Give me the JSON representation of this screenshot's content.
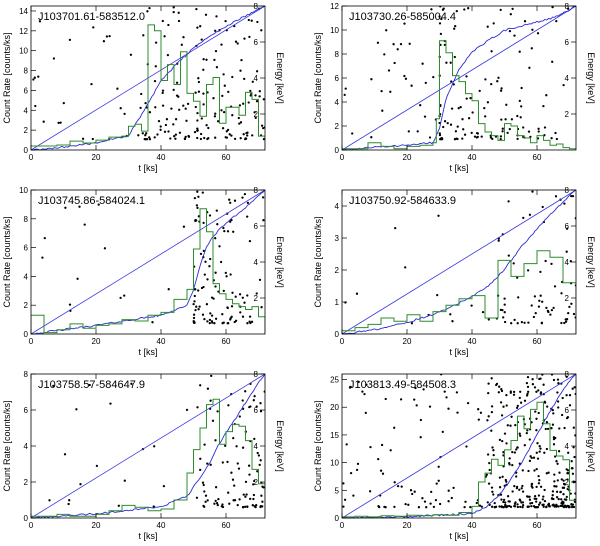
{
  "figure": {
    "x_label": "t [ks]",
    "y_label": "Count Rate [counts/ks]",
    "y2_label": "Energy [keV]",
    "series_colors": {
      "histogram": "#2e8b2e",
      "cumulative": "#2b2bd6",
      "diagonal": "#3a3ae0",
      "photons": "#000000"
    }
  },
  "chart_data": [
    {
      "type": "line",
      "title": "J103701.61-583512.0",
      "xlim": [
        0,
        72
      ],
      "ylim": [
        0,
        14.5
      ],
      "y2lim": [
        0,
        8
      ],
      "xticks": [
        0,
        20,
        40,
        60
      ],
      "yticks": [
        0,
        2,
        4,
        6,
        8,
        10,
        12,
        14
      ],
      "y2ticks": [
        2,
        4,
        6,
        8
      ],
      "histogram": {
        "edges": [
          0,
          4,
          8,
          12,
          16,
          20,
          24,
          28,
          30,
          32,
          34,
          36,
          38,
          40,
          42,
          44,
          46,
          48,
          50,
          52,
          54,
          56,
          58,
          60,
          62,
          64,
          66,
          68,
          70,
          72
        ],
        "rates": [
          0.4,
          0.4,
          0.5,
          0.9,
          0.7,
          1.0,
          1.3,
          1.4,
          2.4,
          2.6,
          1.9,
          12.6,
          12.0,
          7.0,
          8.6,
          6.6,
          9.9,
          5.7,
          4.9,
          3.4,
          6.6,
          7.3,
          2.7,
          4.3,
          4.3,
          3.5,
          5.8,
          5.1,
          1.4
        ]
      },
      "cumulative_fraction": {
        "t": [
          0,
          10,
          20,
          30,
          35,
          40,
          45,
          50,
          55,
          60,
          65,
          70,
          72
        ],
        "f": [
          0.0,
          0.02,
          0.05,
          0.1,
          0.28,
          0.48,
          0.6,
          0.71,
          0.79,
          0.86,
          0.92,
          0.98,
          1.0
        ]
      },
      "photons": {
        "n": 200,
        "seed": 11,
        "model": "flare",
        "onset_ks": 33,
        "emax_keV": 8
      }
    },
    {
      "type": "line",
      "title": "J103730.26-585004.4",
      "xlim": [
        0,
        72
      ],
      "ylim": [
        0,
        12
      ],
      "y2lim": [
        0,
        8
      ],
      "xticks": [
        0,
        20,
        40,
        60
      ],
      "yticks": [
        0,
        2,
        4,
        6,
        8,
        10,
        12
      ],
      "y2ticks": [
        2,
        4,
        6,
        8
      ],
      "histogram": {
        "edges": [
          0,
          4,
          8,
          12,
          16,
          20,
          24,
          28,
          29,
          30,
          32,
          34,
          36,
          38,
          40,
          42,
          44,
          46,
          48,
          50,
          52,
          54,
          56,
          58,
          60,
          62,
          64,
          66,
          68,
          70,
          72
        ],
        "rates": [
          0.1,
          0.1,
          0.6,
          0.3,
          0.1,
          0.3,
          0.4,
          0.6,
          2.6,
          9.1,
          8.1,
          6.2,
          5.7,
          4.7,
          4.1,
          2.2,
          1.5,
          1.2,
          0.8,
          2.2,
          2.0,
          1.2,
          1.0,
          0.6,
          1.2,
          0.8,
          0.4,
          0.5,
          0.2,
          0.1
        ]
      },
      "cumulative_fraction": {
        "t": [
          0,
          28,
          30,
          32,
          34,
          36,
          40,
          45,
          50,
          55,
          60,
          65,
          70,
          72
        ],
        "f": [
          0.0,
          0.05,
          0.15,
          0.36,
          0.46,
          0.56,
          0.68,
          0.76,
          0.83,
          0.86,
          0.89,
          0.92,
          0.97,
          1.0
        ]
      },
      "photons": {
        "n": 160,
        "seed": 23,
        "model": "spike",
        "onset_ks": 30,
        "emax_keV": 8
      }
    },
    {
      "type": "line",
      "title": "J103745.86-584024.1",
      "xlim": [
        0,
        72
      ],
      "ylim": [
        0,
        10
      ],
      "y2lim": [
        0,
        8
      ],
      "xticks": [
        0,
        20,
        40,
        60
      ],
      "yticks": [
        0,
        2,
        4,
        6,
        8,
        10
      ],
      "y2ticks": [
        2,
        4,
        6,
        8
      ],
      "histogram": {
        "edges": [
          0,
          4,
          8,
          12,
          16,
          20,
          24,
          28,
          32,
          36,
          40,
          44,
          48,
          50,
          52,
          54,
          56,
          58,
          60,
          62,
          64,
          66,
          68,
          70,
          72
        ],
        "rates": [
          1.3,
          0.1,
          0.3,
          0.7,
          0.4,
          0.6,
          0.7,
          1.0,
          0.9,
          1.3,
          1.5,
          2.4,
          3.1,
          5.9,
          8.7,
          7.1,
          3.5,
          2.8,
          2.4,
          2.1,
          1.9,
          1.7,
          1.9,
          1.2
        ]
      },
      "cumulative_fraction": {
        "t": [
          0,
          20,
          40,
          48,
          50,
          52,
          54,
          56,
          60,
          65,
          70,
          72
        ],
        "f": [
          0.0,
          0.06,
          0.13,
          0.2,
          0.3,
          0.48,
          0.6,
          0.68,
          0.77,
          0.86,
          0.96,
          1.0
        ]
      },
      "photons": {
        "n": 130,
        "seed": 37,
        "model": "spike",
        "onset_ks": 50,
        "emax_keV": 8
      }
    },
    {
      "type": "line",
      "title": "J103750.92-584633.9",
      "xlim": [
        0,
        72
      ],
      "ylim": [
        0,
        4.5
      ],
      "y2lim": [
        0,
        8
      ],
      "xticks": [
        0,
        20,
        40,
        60
      ],
      "yticks": [
        0,
        1,
        2,
        3,
        4
      ],
      "y2ticks": [
        2,
        4,
        6,
        8
      ],
      "histogram": {
        "edges": [
          0,
          4,
          8,
          12,
          16,
          20,
          24,
          28,
          32,
          36,
          40,
          44,
          48,
          52,
          56,
          60,
          64,
          68,
          72
        ],
        "rates": [
          0.1,
          0.2,
          0.3,
          0.5,
          0.4,
          0.6,
          0.4,
          0.7,
          0.9,
          1.1,
          1.2,
          0.5,
          2.3,
          1.8,
          2.2,
          2.6,
          2.4,
          1.6
        ]
      },
      "cumulative_fraction": {
        "t": [
          0,
          10,
          20,
          30,
          40,
          45,
          50,
          55,
          60,
          65,
          70,
          72
        ],
        "f": [
          0.0,
          0.03,
          0.08,
          0.15,
          0.26,
          0.33,
          0.45,
          0.6,
          0.73,
          0.85,
          0.96,
          1.0
        ]
      },
      "photons": {
        "n": 85,
        "seed": 41,
        "model": "rise",
        "onset_ks": 44,
        "emax_keV": 8
      }
    },
    {
      "type": "line",
      "title": "J103758.57-584647.9",
      "xlim": [
        0,
        72
      ],
      "ylim": [
        0,
        8
      ],
      "y2lim": [
        0,
        8
      ],
      "xticks": [
        0,
        20,
        40,
        60
      ],
      "yticks": [
        0,
        2,
        4,
        6,
        8
      ],
      "y2ticks": [
        2,
        4,
        6,
        8
      ],
      "histogram": {
        "edges": [
          0,
          4,
          8,
          12,
          16,
          20,
          24,
          28,
          32,
          36,
          40,
          44,
          48,
          50,
          52,
          54,
          56,
          58,
          60,
          62,
          64,
          66,
          68,
          70,
          72
        ],
        "rates": [
          0.1,
          0.1,
          0.2,
          0.1,
          0.1,
          0.2,
          0.4,
          0.7,
          0.6,
          0.4,
          0.5,
          1.0,
          2.5,
          3.8,
          5.0,
          6.3,
          6.6,
          4.1,
          4.8,
          5.2,
          5.1,
          4.3,
          2.7,
          1.9
        ]
      },
      "cumulative_fraction": {
        "t": [
          0,
          20,
          40,
          48,
          52,
          55,
          58,
          62,
          66,
          70,
          72
        ],
        "f": [
          0.0,
          0.03,
          0.08,
          0.15,
          0.28,
          0.38,
          0.52,
          0.66,
          0.8,
          0.94,
          1.0
        ]
      },
      "photons": {
        "n": 120,
        "seed": 53,
        "model": "rise",
        "onset_ks": 50,
        "emax_keV": 8
      }
    },
    {
      "type": "line",
      "title": "J103813.49-584508.3",
      "xlim": [
        0,
        72
      ],
      "ylim": [
        0,
        26
      ],
      "y2lim": [
        0,
        8
      ],
      "xticks": [
        0,
        20,
        40,
        60
      ],
      "yticks": [
        0,
        5,
        10,
        15,
        20,
        25
      ],
      "y2ticks": [
        2,
        4,
        6,
        8
      ],
      "histogram": {
        "edges": [
          0,
          4,
          8,
          12,
          16,
          20,
          24,
          28,
          32,
          36,
          40,
          42,
          44,
          46,
          48,
          50,
          52,
          54,
          56,
          58,
          60,
          62,
          64,
          66,
          68,
          70,
          72
        ],
        "rates": [
          0.2,
          0.3,
          0.2,
          0.4,
          0.3,
          0.5,
          0.4,
          0.6,
          0.5,
          1.0,
          2.1,
          6.5,
          8.1,
          10.6,
          9.5,
          12.3,
          14.0,
          18.4,
          16.1,
          19.6,
          20.9,
          17.0,
          12.2,
          11.2,
          10.5,
          3.2
        ]
      },
      "cumulative_fraction": {
        "t": [
          0,
          20,
          40,
          44,
          48,
          52,
          56,
          60,
          64,
          68,
          72
        ],
        "f": [
          0.0,
          0.01,
          0.03,
          0.07,
          0.15,
          0.27,
          0.41,
          0.58,
          0.74,
          0.89,
          1.0
        ]
      },
      "photons": {
        "n": 430,
        "seed": 67,
        "model": "rise",
        "onset_ks": 44,
        "emax_keV": 8
      }
    }
  ]
}
